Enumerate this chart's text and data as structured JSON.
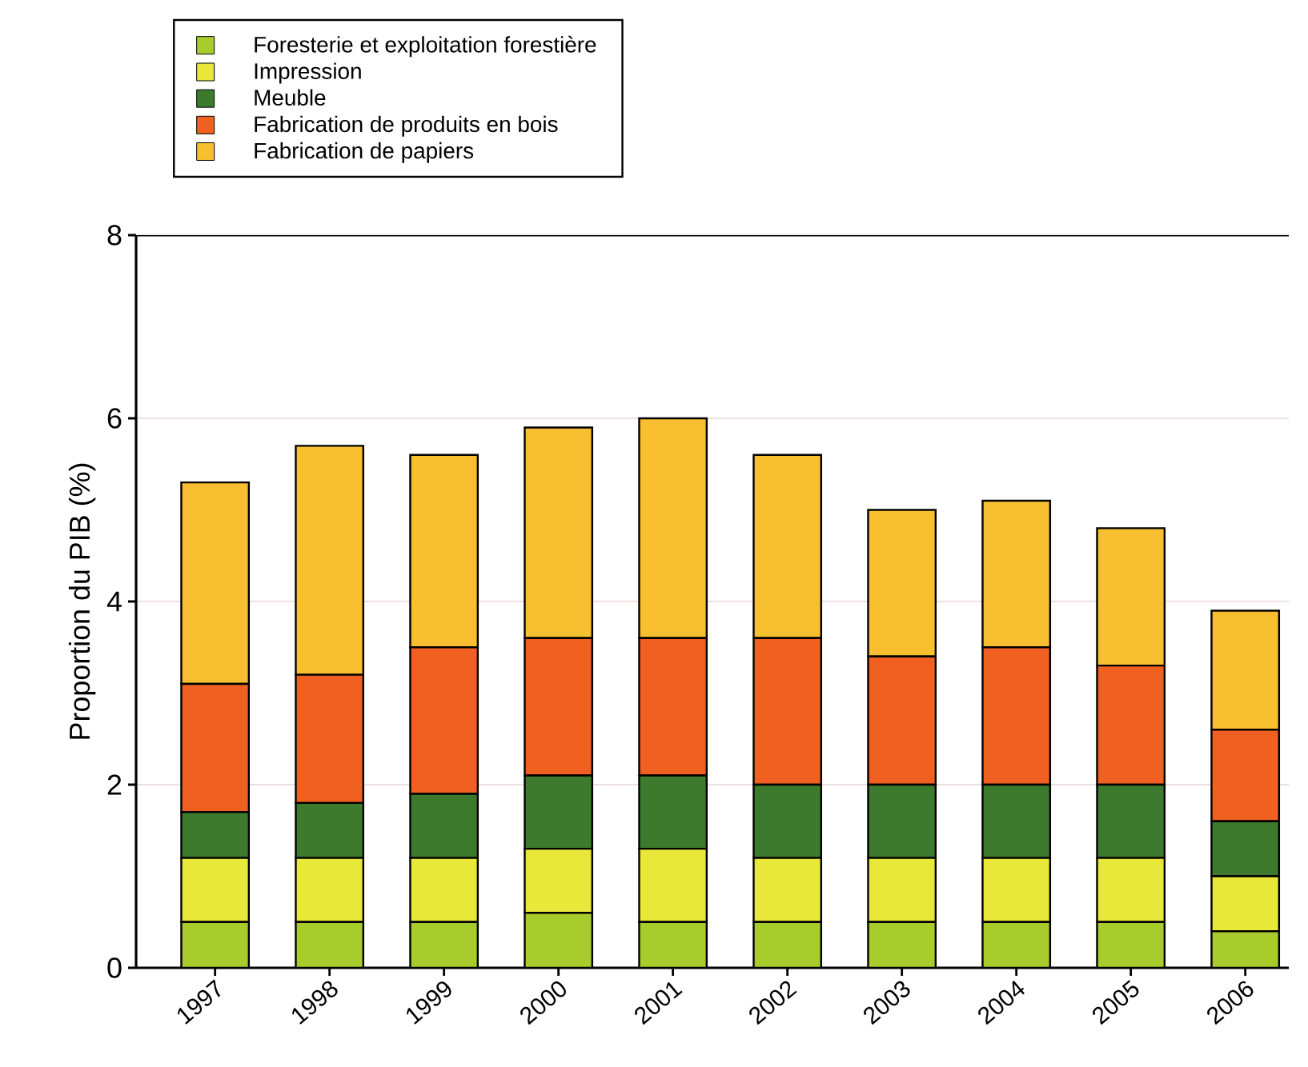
{
  "chart_data": {
    "type": "bar",
    "stacked": true,
    "ylabel": "Proportion du PIB (%)",
    "categories": [
      "1997",
      "1998",
      "1999",
      "2000",
      "2001",
      "2002",
      "2003",
      "2004",
      "2005",
      "2006"
    ],
    "series": [
      {
        "name": "Foresterie et exploitation forestière",
        "color": "#a8cc2c",
        "values": [
          0.5,
          0.5,
          0.5,
          0.6,
          0.5,
          0.5,
          0.5,
          0.5,
          0.5,
          0.4
        ]
      },
      {
        "name": "Impression",
        "color": "#e8e83a",
        "values": [
          0.7,
          0.7,
          0.7,
          0.7,
          0.8,
          0.7,
          0.7,
          0.7,
          0.7,
          0.6
        ]
      },
      {
        "name": "Meuble",
        "color": "#3d7a2e",
        "values": [
          0.5,
          0.6,
          0.7,
          0.8,
          0.8,
          0.8,
          0.8,
          0.8,
          0.8,
          0.6
        ]
      },
      {
        "name": "Fabrication de produits en bois",
        "color": "#f06020",
        "values": [
          1.4,
          1.4,
          1.6,
          1.5,
          1.5,
          1.6,
          1.4,
          1.5,
          1.3,
          1.0
        ]
      },
      {
        "name": "Fabrication de papiers",
        "color": "#f8c030",
        "values": [
          2.2,
          2.5,
          2.1,
          2.3,
          2.4,
          2.0,
          1.6,
          1.6,
          1.5,
          1.3
        ]
      }
    ],
    "ylim": [
      0,
      8
    ],
    "yticks": [
      0,
      2,
      4,
      6,
      8
    ],
    "grid": "y",
    "legend": "top left"
  }
}
